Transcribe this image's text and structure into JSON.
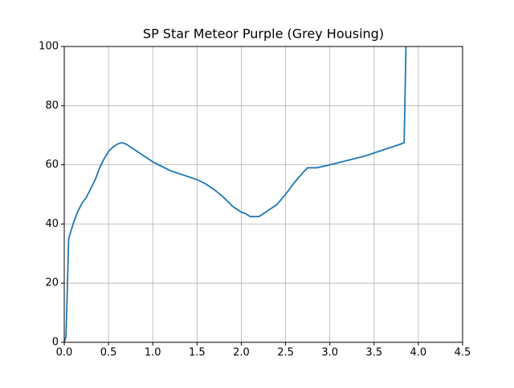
{
  "chart_data": {
    "type": "line",
    "title": "SP Star Meteor Purple (Grey Housing)",
    "x": [
      0,
      0.02,
      0.05,
      0.08,
      0.1,
      0.15,
      0.2,
      0.25,
      0.3,
      0.35,
      0.4,
      0.45,
      0.5,
      0.55,
      0.6,
      0.65,
      0.7,
      0.75,
      0.8,
      0.9,
      1.0,
      1.1,
      1.2,
      1.3,
      1.4,
      1.5,
      1.6,
      1.7,
      1.8,
      1.9,
      2.0,
      2.05,
      2.1,
      2.2,
      2.3,
      2.4,
      2.5,
      2.6,
      2.7,
      2.75,
      2.85,
      3.0,
      3.2,
      3.4,
      3.6,
      3.8,
      3.84,
      3.86
    ],
    "series": [
      {
        "color": "#1f77b4",
        "values": [
          0,
          2,
          35,
          38,
          40,
          44,
          47,
          49,
          52,
          55,
          59,
          62,
          64.5,
          66,
          67,
          67.5,
          67,
          66,
          65,
          63,
          61,
          59.5,
          58,
          57,
          56,
          55,
          53.5,
          51.5,
          49,
          46,
          44,
          43.5,
          42.5,
          42.5,
          44.5,
          46.5,
          50,
          54,
          57.5,
          59,
          59,
          60,
          61.5,
          63,
          65,
          67,
          67.5,
          100
        ]
      }
    ],
    "xlim": [
      0,
      4.5
    ],
    "ylim": [
      0,
      100
    ],
    "xticks": [
      {
        "value": 0,
        "label": "0.0"
      },
      0.5,
      {
        "value": 1,
        "label": "1.0"
      },
      1.5,
      {
        "value": 2,
        "label": "2.0"
      },
      2.5,
      {
        "value": 3,
        "label": "3.0"
      },
      3.5,
      {
        "value": 4,
        "label": "4.0"
      },
      4.5
    ],
    "yticks": [
      0,
      20,
      40,
      60,
      80,
      100
    ],
    "grid": true
  }
}
